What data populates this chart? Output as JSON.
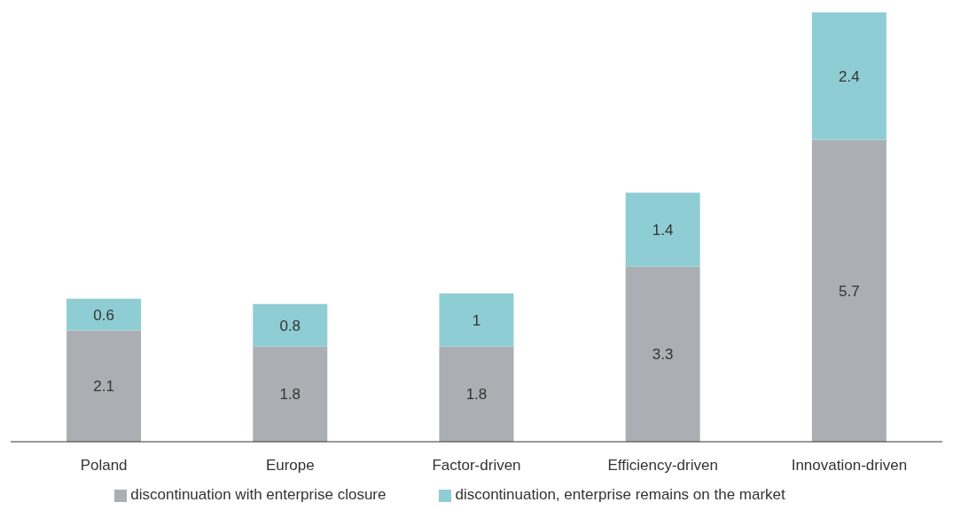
{
  "chart_data": {
    "type": "bar",
    "stacked": true,
    "data_labels": true,
    "legend": "bottom",
    "categories": [
      "Poland",
      "Europe",
      "Factor-driven",
      "Efficiency-driven",
      "Innovation-driven"
    ],
    "series": [
      {
        "name": "discontinuation with enterprise closure",
        "color": "#abafb3",
        "values": [
          2.1,
          1.8,
          1.8,
          3.3,
          5.7
        ]
      },
      {
        "name": "discontinuation, enterprise remains on the market",
        "color": "#8fcdd4",
        "values": [
          0.6,
          0.8,
          1,
          1.4,
          2.4
        ]
      }
    ]
  }
}
